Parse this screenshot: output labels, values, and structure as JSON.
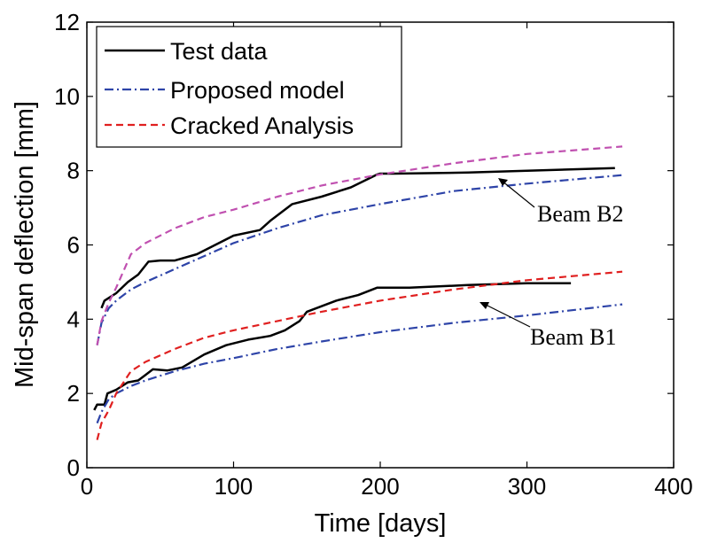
{
  "chart_data": {
    "type": "line",
    "title": "",
    "xlabel": "Time [days]",
    "ylabel": "Mid-span deflection [mm]",
    "xlim": [
      0,
      400
    ],
    "ylim": [
      0,
      12
    ],
    "xticks": [
      0,
      100,
      200,
      300,
      400
    ],
    "yticks": [
      0,
      2,
      4,
      6,
      8,
      10,
      12
    ],
    "grid": false,
    "legend_position": "top-left",
    "legend": [
      "Test data",
      "Proposed model",
      "Cracked Analysis"
    ],
    "annotations": [
      {
        "text": "Beam B2",
        "arrow_to": [
          283,
          7.9
        ]
      },
      {
        "text": "Beam B1",
        "arrow_to": [
          265,
          4.95
        ]
      }
    ],
    "series": [
      {
        "name": "Test data",
        "group": "B2",
        "color": "#000000",
        "dash": "solid",
        "x": [
          10,
          12,
          20,
          28,
          35,
          42,
          50,
          60,
          75,
          90,
          100,
          118,
          125,
          140,
          160,
          180,
          198,
          200,
          210,
          260,
          300,
          360
        ],
        "y": [
          4.3,
          4.5,
          4.7,
          5.0,
          5.2,
          5.55,
          5.58,
          5.58,
          5.75,
          6.05,
          6.25,
          6.4,
          6.65,
          7.1,
          7.3,
          7.55,
          7.9,
          7.92,
          7.92,
          7.95,
          8.0,
          8.07
        ]
      },
      {
        "name": "Test data",
        "group": "B1",
        "color": "#000000",
        "dash": "solid",
        "x": [
          5,
          7,
          12,
          14,
          20,
          28,
          35,
          40,
          45,
          55,
          65,
          80,
          95,
          110,
          125,
          135,
          145,
          150,
          170,
          185,
          198,
          220,
          260,
          300,
          330
        ],
        "y": [
          1.55,
          1.7,
          1.7,
          2.0,
          2.1,
          2.3,
          2.35,
          2.5,
          2.65,
          2.62,
          2.7,
          3.05,
          3.3,
          3.45,
          3.55,
          3.7,
          3.95,
          4.2,
          4.5,
          4.65,
          4.85,
          4.85,
          4.92,
          4.97,
          4.97
        ]
      },
      {
        "name": "Proposed model",
        "group": "B2",
        "color": "#2e44a8",
        "dash": "dashdot",
        "x": [
          7,
          10,
          15,
          20,
          30,
          40,
          60,
          80,
          100,
          130,
          160,
          200,
          250,
          300,
          365
        ],
        "y": [
          3.3,
          3.9,
          4.3,
          4.5,
          4.8,
          5.0,
          5.35,
          5.7,
          6.05,
          6.45,
          6.8,
          7.1,
          7.45,
          7.65,
          7.88
        ]
      },
      {
        "name": "Proposed model",
        "group": "B1",
        "color": "#2e44a8",
        "dash": "dashdot",
        "x": [
          7,
          10,
          15,
          20,
          30,
          40,
          60,
          80,
          100,
          130,
          160,
          200,
          250,
          300,
          365
        ],
        "y": [
          1.2,
          1.5,
          1.85,
          2.0,
          2.2,
          2.35,
          2.6,
          2.8,
          2.95,
          3.2,
          3.4,
          3.65,
          3.9,
          4.1,
          4.4
        ]
      },
      {
        "name": "Cracked Analysis",
        "group": "B2",
        "color": "#c050b0",
        "dash": "dashed",
        "x": [
          7,
          10,
          15,
          20,
          30,
          40,
          60,
          80,
          100,
          130,
          160,
          200,
          250,
          300,
          365
        ],
        "y": [
          3.3,
          3.95,
          4.45,
          4.85,
          5.75,
          6.05,
          6.45,
          6.75,
          6.95,
          7.3,
          7.6,
          7.9,
          8.2,
          8.45,
          8.65
        ]
      },
      {
        "name": "Cracked Analysis",
        "group": "B1",
        "color": "#e02020",
        "dash": "dashed",
        "x": [
          7,
          10,
          15,
          20,
          30,
          40,
          60,
          80,
          100,
          130,
          160,
          200,
          250,
          300,
          365
        ],
        "y": [
          0.75,
          1.2,
          1.55,
          2.0,
          2.6,
          2.85,
          3.2,
          3.5,
          3.7,
          3.95,
          4.2,
          4.5,
          4.8,
          5.05,
          5.28
        ]
      }
    ]
  },
  "legend_colors": {
    "Test data": "#000000",
    "Proposed model": "#2e44a8",
    "Cracked Analysis": "#e02020"
  }
}
